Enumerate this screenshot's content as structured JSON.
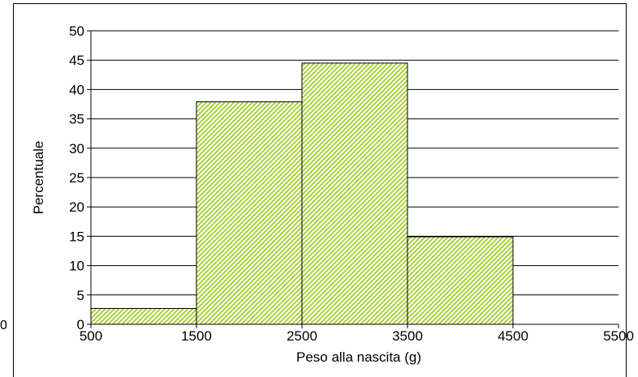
{
  "chart_data": {
    "type": "histogram",
    "title": "",
    "xlabel": "Peso alla nascita (g)",
    "ylabel": "Percentuale",
    "ylim": [
      0,
      50
    ],
    "xlim": [
      500,
      5500
    ],
    "y_ticks": [
      0,
      5,
      10,
      15,
      20,
      25,
      30,
      35,
      40,
      45,
      50
    ],
    "x_ticks": [
      500,
      1500,
      2500,
      3500,
      4500,
      5500
    ],
    "grid": true,
    "bins": [
      {
        "from": 500,
        "to": 1500,
        "value": 2.7
      },
      {
        "from": 1500,
        "to": 2500,
        "value": 37.9
      },
      {
        "from": 2500,
        "to": 3500,
        "value": 44.5
      },
      {
        "from": 3500,
        "to": 4500,
        "value": 14.9
      }
    ],
    "colors": {
      "bar_fill": "#a9d23c",
      "bar_stroke": "#000000",
      "grid": "#000000"
    }
  },
  "stray_label": "0"
}
